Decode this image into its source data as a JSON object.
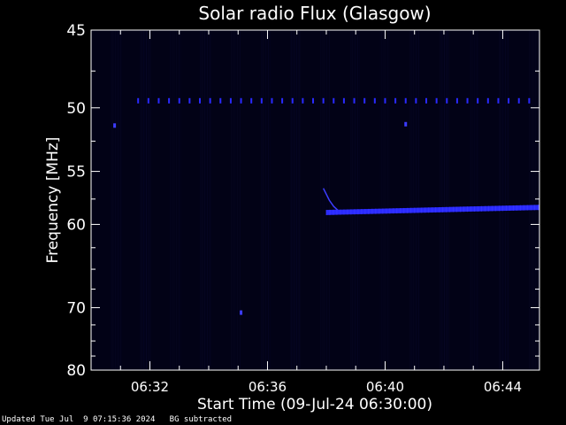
{
  "chart_data": {
    "type": "heatmap",
    "title": "Solar radio Flux (Glasgow)",
    "xlabel": "Start Time (09-Jul-24 06:30:00)",
    "ylabel": "Frequency [MHz]",
    "x_unit": "minutes after 06:30:00",
    "xlim": [
      0,
      15.25
    ],
    "ylim": [
      45,
      80
    ],
    "y_axis_inverted": true,
    "x_ticks": [
      {
        "value": 2,
        "label": "06:32"
      },
      {
        "value": 6,
        "label": "06:36"
      },
      {
        "value": 10,
        "label": "06:40"
      },
      {
        "value": 14,
        "label": "06:44"
      }
    ],
    "y_ticks": [
      {
        "value": 45,
        "label": "45"
      },
      {
        "value": 50,
        "label": "50"
      },
      {
        "value": 55,
        "label": "55"
      },
      {
        "value": 60,
        "label": "60"
      },
      {
        "value": 70,
        "label": "70"
      },
      {
        "value": 80,
        "label": "80"
      }
    ],
    "colors": {
      "background": "#000000",
      "plot_background": "#020216",
      "axes": "#ffffff",
      "signal": "#2a2aff",
      "signal_bright": "#3c3cff"
    },
    "features": {
      "interference_line": {
        "freq": 49.5,
        "x_start": 1.6,
        "x_end": 15.0,
        "step": 0.35
      },
      "spots": [
        {
          "x": 0.8,
          "freq": 51.3
        },
        {
          "x": 10.7,
          "freq": 51.2
        },
        {
          "x": 5.1,
          "freq": 70.7
        }
      ],
      "burst_streak": {
        "points": [
          [
            7.9,
            56.5
          ],
          [
            8.1,
            57.6
          ],
          [
            8.25,
            58.2
          ],
          [
            8.4,
            58.6
          ]
        ]
      },
      "emission_band": {
        "x_start": 8.0,
        "x_end": 15.25,
        "freq_start": 58.8,
        "freq_end": 58.3,
        "thickness": 0.5
      }
    }
  },
  "footer": {
    "text": "Updated Tue Jul  9 07:15:36 2024   BG subtracted"
  }
}
